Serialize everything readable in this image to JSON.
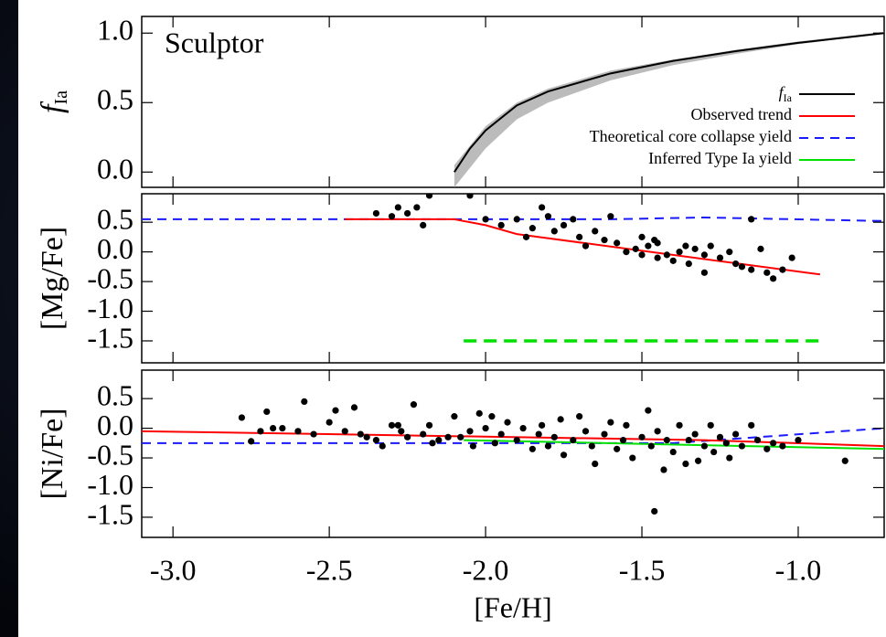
{
  "chart_data": [
    {
      "type": "line",
      "annotation": "Sculptor",
      "ylabel": "f",
      "ylabel_sub": "Ia",
      "xlim": [
        -3.1,
        -0.725
      ],
      "ylim": [
        -0.11,
        1.12
      ],
      "yticks": [
        {
          "value": 0,
          "label": "0.0"
        },
        0.5,
        {
          "value": 1,
          "label": "1.0"
        }
      ],
      "legend": [
        {
          "name": "f",
          "subscript": "Ia",
          "color": "#000000"
        },
        {
          "name": "Observed trend",
          "color": "#ff0000"
        },
        {
          "name": "Theoretical core collapse yield",
          "color": "#1a1aff",
          "dash": true
        },
        {
          "name": "Inferred Type Ia yield",
          "color": "#00e000"
        }
      ],
      "series": [
        {
          "type": "band",
          "color": "#bbbbbb",
          "x": [
            -2.1,
            -2.0,
            -1.9,
            -1.8,
            -1.6,
            -1.4,
            -1.2,
            -1.0,
            -0.725
          ],
          "lower": [
            -0.11,
            0.17,
            0.38,
            0.5,
            0.66,
            0.77,
            0.85,
            0.92,
            1.0
          ],
          "upper": [
            0.05,
            0.33,
            0.5,
            0.6,
            0.73,
            0.81,
            0.88,
            0.94,
            1.01
          ]
        },
        {
          "type": "line",
          "color": "#000000",
          "x": [
            -2.1,
            -2.05,
            -2.0,
            -1.9,
            -1.8,
            -1.6,
            -1.4,
            -1.2,
            -1.0,
            -0.725
          ],
          "values": [
            0,
            0.17,
            0.3,
            0.48,
            0.58,
            0.71,
            0.8,
            0.87,
            0.93,
            1.0
          ]
        }
      ]
    },
    {
      "type": "scatter",
      "ylabel": "[Mg/Fe]",
      "xlim": [
        -3.1,
        -0.725
      ],
      "ylim": [
        -1.87,
        0.98
      ],
      "yticks": [
        -1.5,
        {
          "value": -1,
          "label": "-1.0"
        },
        -0.5,
        {
          "value": 0,
          "label": "0.0"
        },
        0.5
      ],
      "series": [
        {
          "type": "line",
          "color": "#1a1aff",
          "dash": true,
          "x": [
            -3.1,
            -1.6,
            -1.3,
            -0.725
          ],
          "values": [
            0.55,
            0.55,
            0.58,
            0.52
          ]
        },
        {
          "type": "line",
          "color": "#ff0000",
          "x": [
            -2.45,
            -2.1,
            -2.0,
            -1.9,
            -0.93
          ],
          "values": [
            0.55,
            0.55,
            0.45,
            0.3,
            -0.38
          ]
        },
        {
          "type": "line",
          "color": "#00e000",
          "dash": true,
          "thick": true,
          "x": [
            -2.07,
            -0.93
          ],
          "values": [
            -1.5,
            -1.5
          ]
        },
        {
          "type": "scatter",
          "color": "#000000",
          "x": [
            -2.35,
            -2.3,
            -2.28,
            -2.25,
            -2.22,
            -2.2,
            -2.18,
            -2.05,
            -2.0,
            -1.95,
            -1.9,
            -1.87,
            -1.85,
            -1.82,
            -1.8,
            -1.78,
            -1.75,
            -1.72,
            -1.7,
            -1.68,
            -1.65,
            -1.62,
            -1.6,
            -1.58,
            -1.55,
            -1.52,
            -1.5,
            -1.48,
            -1.46,
            -1.45,
            -1.42,
            -1.4,
            -1.38,
            -1.36,
            -1.35,
            -1.33,
            -1.3,
            -1.28,
            -1.25,
            -1.22,
            -1.2,
            -1.18,
            -1.15,
            -1.15,
            -1.12,
            -1.1,
            -1.08,
            -1.05,
            -1.02,
            -1.3,
            -1.45,
            -1.5
          ],
          "values": [
            0.65,
            0.6,
            0.75,
            0.65,
            0.75,
            0.45,
            0.95,
            0.95,
            0.55,
            0.45,
            0.55,
            0.25,
            0.4,
            0.75,
            0.6,
            0.35,
            0.45,
            0.55,
            0.25,
            0.1,
            0.35,
            0.2,
            0.6,
            0.15,
            0,
            0.05,
            0.25,
            0.1,
            0.2,
            0.15,
            -0.05,
            -0.15,
            0,
            0.1,
            -0.2,
            0.05,
            -0.05,
            0.1,
            -0.1,
            0,
            -0.2,
            -0.25,
            0.55,
            -0.3,
            0.05,
            -0.35,
            -0.45,
            -0.3,
            -0.1,
            -0.35,
            -0.1,
            -0.05
          ]
        }
      ]
    },
    {
      "type": "scatter",
      "ylabel": "[Ni/Fe]",
      "xlabel": "[Fe/H]",
      "xlim": [
        -3.1,
        -0.725
      ],
      "ylim": [
        -1.84,
        0.98
      ],
      "xticks": [
        {
          "value": -3,
          "label": "-3.0"
        },
        -2.5,
        {
          "value": -2,
          "label": "-2.0"
        },
        -1.5,
        {
          "value": -1,
          "label": "-1.0"
        }
      ],
      "yticks": [
        -1.5,
        {
          "value": -1,
          "label": "-1.0"
        },
        -0.5,
        {
          "value": 0,
          "label": "0.0"
        },
        0.5
      ],
      "series": [
        {
          "type": "line",
          "color": "#1a1aff",
          "dash": true,
          "x": [
            -3.1,
            -1.4,
            -0.725
          ],
          "values": [
            -0.25,
            -0.25,
            0.0
          ]
        },
        {
          "type": "line",
          "color": "#ff0000",
          "x": [
            -3.1,
            -1.3,
            -0.725
          ],
          "values": [
            -0.05,
            -0.2,
            -0.3
          ]
        },
        {
          "type": "line",
          "color": "#00e000",
          "x": [
            -2.07,
            -0.725
          ],
          "values": [
            -0.2,
            -0.35
          ]
        },
        {
          "type": "scatter",
          "color": "#000000",
          "x": [
            -2.78,
            -2.75,
            -2.72,
            -2.7,
            -2.68,
            -2.65,
            -2.6,
            -2.58,
            -2.55,
            -2.5,
            -2.48,
            -2.45,
            -2.42,
            -2.4,
            -2.38,
            -2.35,
            -2.33,
            -2.3,
            -2.28,
            -2.27,
            -2.25,
            -2.23,
            -2.2,
            -2.18,
            -2.17,
            -2.15,
            -2.12,
            -2.1,
            -2.08,
            -2.05,
            -2.04,
            -2.02,
            -2.0,
            -1.98,
            -1.97,
            -1.95,
            -1.93,
            -1.9,
            -1.88,
            -1.85,
            -1.83,
            -1.82,
            -1.8,
            -1.78,
            -1.76,
            -1.75,
            -1.72,
            -1.7,
            -1.68,
            -1.66,
            -1.65,
            -1.62,
            -1.6,
            -1.58,
            -1.56,
            -1.55,
            -1.53,
            -1.5,
            -1.48,
            -1.47,
            -1.46,
            -1.45,
            -1.43,
            -1.42,
            -1.4,
            -1.38,
            -1.36,
            -1.35,
            -1.33,
            -1.32,
            -1.3,
            -1.28,
            -1.27,
            -1.25,
            -1.23,
            -1.22,
            -1.2,
            -1.18,
            -1.15,
            -1.13,
            -1.1,
            -1.08,
            -1.05,
            -1.0,
            -0.85
          ],
          "values": [
            0.18,
            -0.22,
            -0.05,
            0.28,
            0,
            0,
            -0.05,
            0.45,
            -0.1,
            0.1,
            0.3,
            -0.05,
            0.35,
            -0.1,
            -0.15,
            -0.2,
            -0.3,
            0.05,
            0.05,
            -0.05,
            -0.15,
            0.4,
            -0.1,
            0.05,
            -0.25,
            -0.2,
            -0.15,
            0.2,
            -0.15,
            -0.05,
            -0.3,
            0.25,
            0,
            0.2,
            -0.25,
            -0.1,
            0.1,
            -0.2,
            0,
            -0.35,
            -0.1,
            0.05,
            -0.3,
            -0.15,
            0.15,
            -0.45,
            -0.2,
            0.2,
            -0.05,
            -0.3,
            -0.6,
            -0.1,
            0.1,
            -0.35,
            -0.2,
            0.05,
            -0.5,
            -0.15,
            0.3,
            -0.3,
            -1.4,
            -0.05,
            -0.7,
            -0.2,
            -0.4,
            0.05,
            -0.6,
            -0.2,
            -0.1,
            -0.55,
            -0.3,
            0.05,
            -0.4,
            -0.15,
            -0.25,
            -0.5,
            -0.1,
            -0.3,
            0.05,
            -0.2,
            -0.35,
            -0.25,
            -0.3,
            -0.2,
            -0.55
          ]
        }
      ]
    }
  ]
}
